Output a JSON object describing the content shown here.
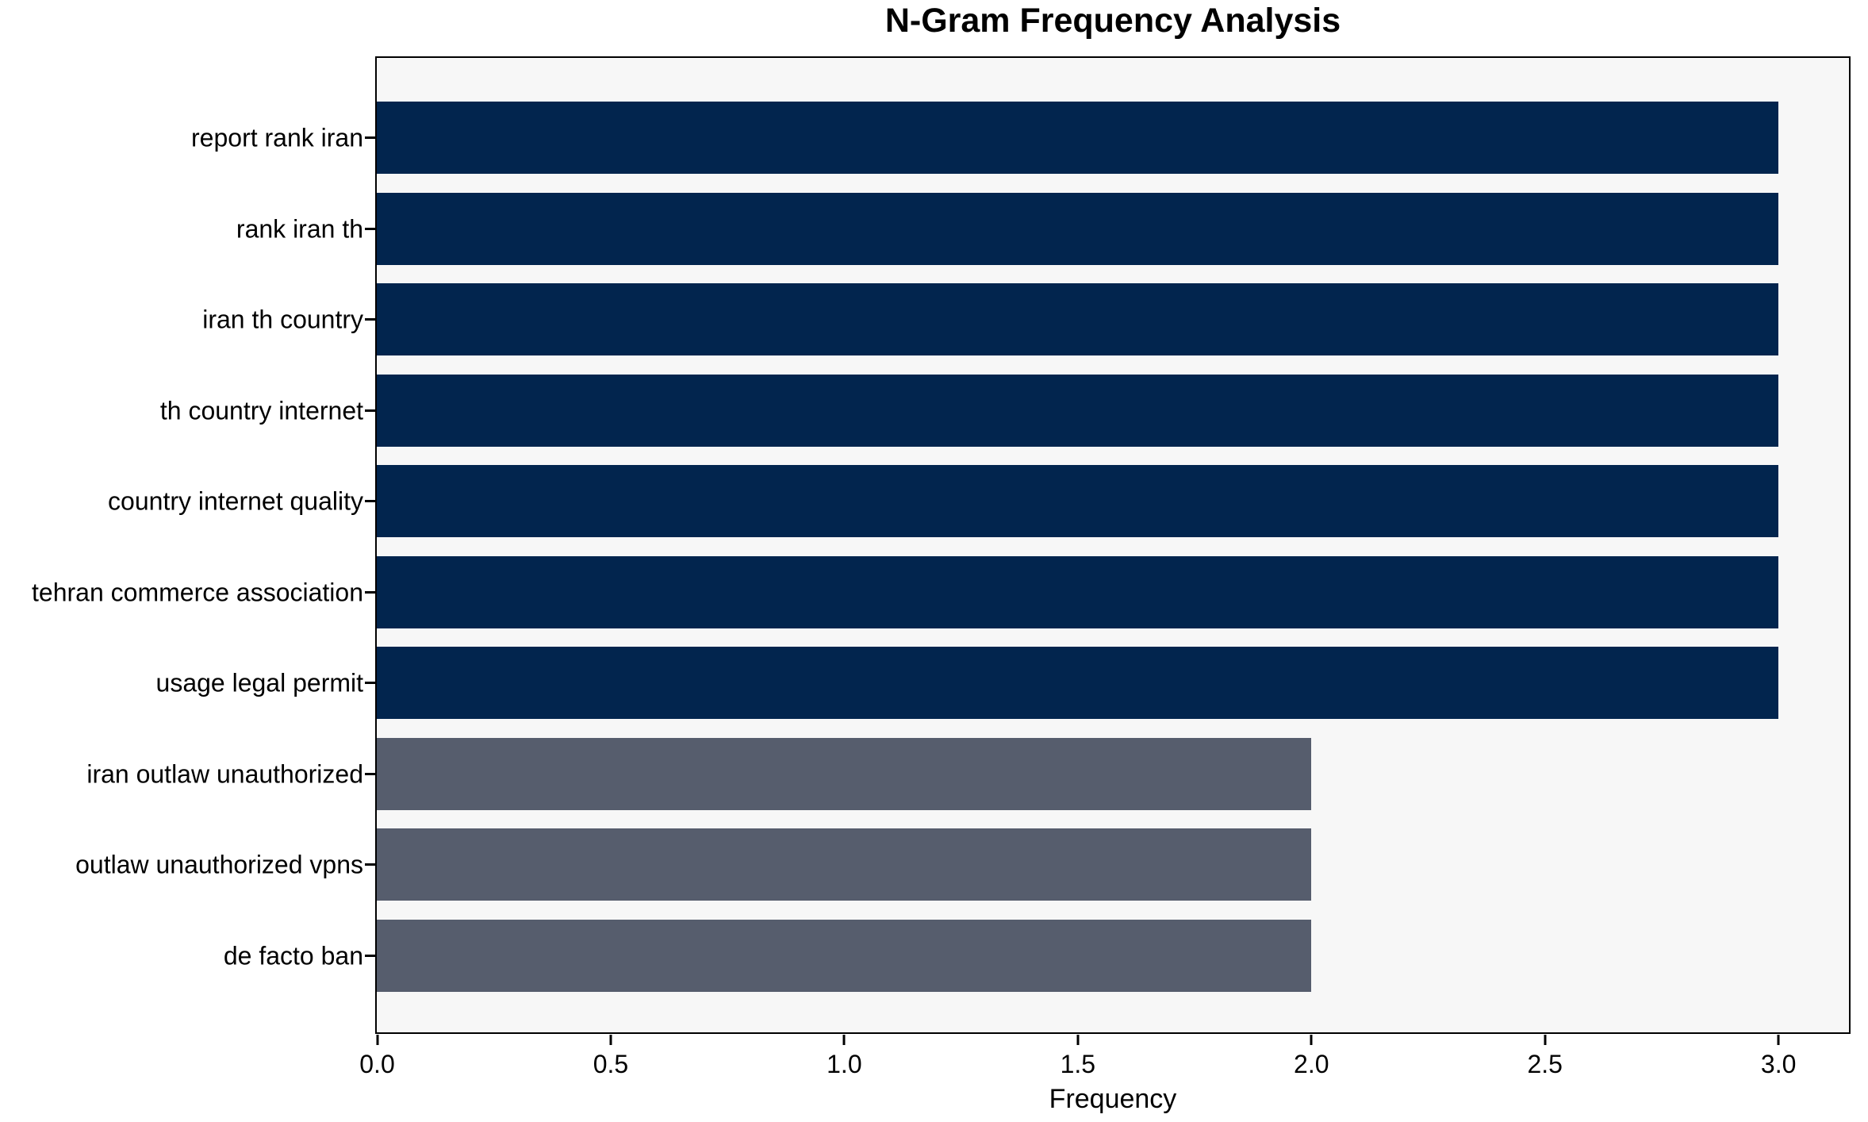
{
  "figure": {
    "background_color": "#ffffff",
    "plot_background_color": "#f7f7f7",
    "spine_color": "#000000",
    "text_color": "#000000"
  },
  "chart_data": {
    "type": "bar",
    "orientation": "horizontal",
    "title": "N-Gram Frequency Analysis",
    "xlabel": "Frequency",
    "ylabel": "",
    "categories": [
      "report rank iran",
      "rank iran th",
      "iran th country",
      "th country internet",
      "country internet quality",
      "tehran commerce association",
      "usage legal permit",
      "iran outlaw unauthorized",
      "outlaw unauthorized vpns",
      "de facto ban"
    ],
    "values": [
      3,
      3,
      3,
      3,
      3,
      3,
      3,
      2,
      2,
      2
    ],
    "bar_colors": [
      "#02254e",
      "#02254e",
      "#02254e",
      "#02254e",
      "#02254e",
      "#02254e",
      "#02254e",
      "#565d6d",
      "#565d6d",
      "#565d6d"
    ],
    "palette": {
      "high_frequency": "#02254e",
      "low_frequency": "#565d6d"
    },
    "x_ticks": [
      0.0,
      0.5,
      1.0,
      1.5,
      2.0,
      2.5,
      3.0
    ],
    "x_tick_labels": [
      "0.0",
      "0.5",
      "1.0",
      "1.5",
      "2.0",
      "2.5",
      "3.0"
    ],
    "xlim": [
      0,
      3.15
    ],
    "grid": false,
    "legend": "none"
  }
}
